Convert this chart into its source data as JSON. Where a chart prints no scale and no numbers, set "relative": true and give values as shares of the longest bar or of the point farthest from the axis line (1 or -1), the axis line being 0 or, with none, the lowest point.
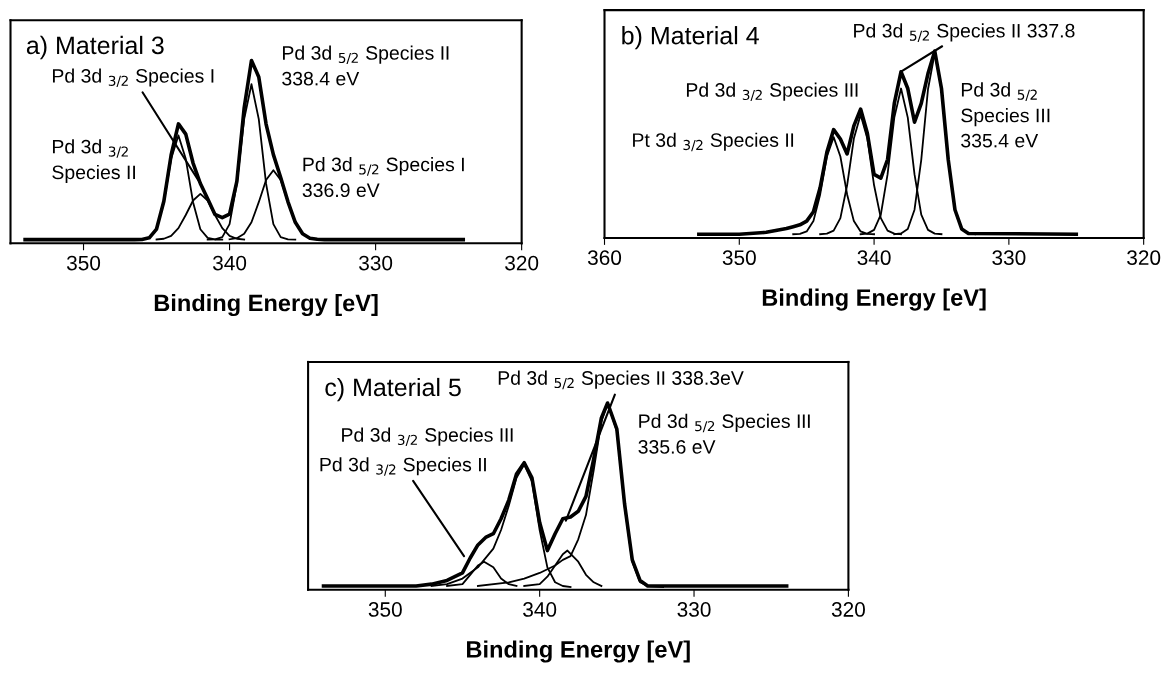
{
  "chart_data": [
    {
      "type": "line",
      "title": "a) Material 3",
      "xlabel": "Binding Energy [eV]",
      "relative": true,
      "xlim": [
        355,
        320
      ],
      "xticks": [
        350,
        340,
        330,
        320
      ],
      "grid": false,
      "legend": false,
      "marker": "none",
      "line_style": "solid",
      "tick_labels": "x",
      "annotations": [
        {
          "text": "Pd 3d $_{3/2}$ Species I",
          "x": 342,
          "y": 0.327
        },
        "Pd 3d $_{3/2}$\nSpecies II",
        "Pd 3d $_{5/2}$ Species II\n338.4 eV",
        "Pd 3d $_{5/2}$ Species I\n336.9 eV"
      ],
      "series": [
        {
          "color": "#000000",
          "x": [
            354,
            347,
            346.5,
            346,
            345.5,
            345,
            344.5,
            344,
            343.5,
            343,
            342.5,
            342,
            341.5,
            341,
            340.5,
            340,
            339.5,
            339,
            338.5,
            338,
            337.5,
            337,
            336.5,
            336,
            335.5,
            335,
            334.5,
            334,
            333.5,
            324
          ],
          "values": [
            0.02,
            0.02,
            0.02,
            0.021,
            0.03,
            0.078,
            0.23,
            0.483,
            0.653,
            0.597,
            0.439,
            0.327,
            0.244,
            0.158,
            0.14,
            0.16,
            0.339,
            0.74,
            1.0,
            0.91,
            0.652,
            0.485,
            0.36,
            0.227,
            0.115,
            0.052,
            0.028,
            0.022,
            0.02,
            0.02
          ]
        },
        {
          "color": "#000000",
          "x": [
            346.5,
            346,
            345.5,
            345,
            344.5,
            344,
            343.5,
            343,
            342.5,
            342,
            341.5,
            341,
            340.5
          ],
          "values": [
            0.02,
            0.021,
            0.03,
            0.077,
            0.225,
            0.462,
            0.59,
            0.462,
            0.225,
            0.077,
            0.03,
            0.021,
            0.02
          ]
        },
        {
          "color": "#000000",
          "x": [
            345,
            344.5,
            344,
            343.5,
            343,
            342.5,
            342,
            341.5,
            341,
            340.5,
            340,
            339.5,
            339
          ],
          "values": [
            0.021,
            0.025,
            0.041,
            0.083,
            0.155,
            0.234,
            0.27,
            0.234,
            0.155,
            0.083,
            0.041,
            0.025,
            0.021
          ]
        },
        {
          "color": "#000000",
          "x": [
            341.5,
            341,
            340.5,
            340,
            339.5,
            339,
            338.5,
            338,
            337.5,
            337,
            336.5,
            336,
            335.5
          ],
          "values": [
            0.02,
            0.022,
            0.034,
            0.105,
            0.326,
            0.679,
            0.87,
            0.679,
            0.326,
            0.105,
            0.034,
            0.022,
            0.02
          ]
        },
        {
          "color": "#000000",
          "x": [
            340,
            339.5,
            339,
            338.5,
            338,
            337.5,
            337,
            336.5,
            336,
            335.5,
            335,
            334.5,
            334
          ],
          "values": [
            0.022,
            0.028,
            0.052,
            0.115,
            0.225,
            0.346,
            0.4,
            0.346,
            0.225,
            0.115,
            0.052,
            0.028,
            0.022
          ]
        }
      ]
    },
    {
      "type": "line",
      "title": "b) Material 4",
      "xlabel": "Binding Energy [eV]",
      "relative": true,
      "xlim": [
        360,
        320
      ],
      "xticks": [
        360,
        350,
        340,
        330,
        320
      ],
      "grid": false,
      "legend": false,
      "marker": "none",
      "line_style": "solid",
      "tick_labels": "x",
      "annotations": [
        {
          "text": "Pd 3d $_{5/2}$ Species II 337.8",
          "x": 338,
          "y": 0.89
        },
        "Pd 3d $_{3/2}$ Species III",
        "Pt 3d $_{3/2}$ Species II",
        "Pd 3d $_{5/2}$\nSpecies III\n335.4 eV"
      ],
      "series": [
        {
          "color": "#000000",
          "x": [
            353,
            350,
            348,
            346.5,
            346,
            345.5,
            345,
            344.5,
            344,
            343.5,
            343,
            342.5,
            342,
            341.5,
            341,
            340.5,
            340,
            339.5,
            339,
            338.5,
            338,
            337.5,
            337,
            336.5,
            336,
            335.5,
            335,
            334.5,
            334,
            333.5,
            333,
            325
          ],
          "values": [
            0.02,
            0.02,
            0.03,
            0.05,
            0.06,
            0.07,
            0.09,
            0.14,
            0.27,
            0.46,
            0.58,
            0.53,
            0.45,
            0.6,
            0.69,
            0.56,
            0.34,
            0.32,
            0.42,
            0.72,
            0.89,
            0.8,
            0.62,
            0.72,
            0.88,
            1.0,
            0.8,
            0.42,
            0.151,
            0.048,
            0.024,
            0.02
          ]
        },
        {
          "color": "#000000",
          "x": [
            346,
            345.5,
            345,
            344.5,
            344,
            343.5,
            343,
            342.5,
            342,
            341.5,
            341,
            340.5,
            340
          ],
          "values": [
            0.02,
            0.022,
            0.035,
            0.09,
            0.233,
            0.436,
            0.54,
            0.436,
            0.233,
            0.09,
            0.035,
            0.022,
            0.02
          ]
        },
        {
          "color": "#000000",
          "x": [
            344,
            343.5,
            343,
            342.5,
            342,
            341.5,
            341,
            340.5,
            340,
            339.5,
            339,
            338.5,
            338
          ],
          "values": [
            0.02,
            0.023,
            0.039,
            0.106,
            0.282,
            0.532,
            0.66,
            0.532,
            0.282,
            0.106,
            0.039,
            0.023,
            0.02
          ]
        },
        {
          "color": "#000000",
          "x": [
            341,
            340.5,
            340,
            339.5,
            339,
            338.5,
            338,
            337.5,
            337,
            336.5,
            336,
            335.5,
            335
          ],
          "values": [
            0.02,
            0.023,
            0.043,
            0.125,
            0.34,
            0.644,
            0.8,
            0.644,
            0.34,
            0.125,
            0.043,
            0.023,
            0.02
          ]
        },
        {
          "color": "#000000",
          "x": [
            338.5,
            338,
            337.5,
            337,
            336.5,
            336,
            335.5,
            335,
            334.5,
            334,
            333.5,
            333,
            332.5
          ],
          "values": [
            0.02,
            0.024,
            0.048,
            0.151,
            0.418,
            0.796,
            0.99,
            0.796,
            0.418,
            0.151,
            0.048,
            0.024,
            0.02
          ]
        }
      ]
    },
    {
      "type": "line",
      "title": "c) Material 5",
      "xlabel": "Binding Energy [eV]",
      "relative": true,
      "xlim": [
        355,
        320
      ],
      "xticks": [
        350,
        340,
        330,
        320
      ],
      "grid": false,
      "legend": false,
      "marker": "none",
      "line_style": "solid",
      "tick_labels": "x",
      "annotations": [
        {
          "text": "Pd 3d $_{5/2}$ Species II 338.3eV",
          "x": 338.3,
          "y": 0.37
        },
        "Pd 3d $_{3/2}$ Species III",
        {
          "text": "Pd 3d $_{3/2}$ Species II",
          "x": 344.9,
          "y": 0.18
        },
        "Pd 3d $_{5/2}$ Species III\n335.6 eV"
      ],
      "series": [
        {
          "color": "#000000",
          "x": [
            354,
            348,
            347,
            346,
            345,
            344.5,
            344,
            343.5,
            343,
            342.5,
            342,
            341.5,
            341,
            340.5,
            340,
            339.5,
            339,
            338.5,
            338,
            337.5,
            337,
            336.5,
            336,
            335.6,
            335,
            334.5,
            334,
            333.5,
            333,
            324
          ],
          "values": [
            0.02,
            0.02,
            0.03,
            0.05,
            0.09,
            0.17,
            0.24,
            0.28,
            0.3,
            0.38,
            0.48,
            0.62,
            0.68,
            0.6,
            0.36,
            0.21,
            0.3,
            0.38,
            0.39,
            0.42,
            0.5,
            0.7,
            0.92,
            1.0,
            0.86,
            0.46,
            0.16,
            0.05,
            0.02,
            0.02
          ]
        },
        {
          "color": "#000000",
          "x": [
            346,
            345,
            344.5,
            344,
            343.6,
            343,
            342.5,
            342,
            341.5
          ],
          "values": [
            0.02,
            0.03,
            0.08,
            0.13,
            0.15,
            0.12,
            0.06,
            0.03,
            0.02
          ]
        },
        {
          "color": "#000000",
          "x": [
            347,
            346,
            345,
            344,
            343,
            342.5,
            342,
            341.5,
            341,
            340.5,
            340,
            339.5,
            339,
            338.5,
            338
          ],
          "values": [
            0.02,
            0.03,
            0.06,
            0.12,
            0.22,
            0.32,
            0.45,
            0.6,
            0.67,
            0.58,
            0.32,
            0.12,
            0.04,
            0.02,
            0.015
          ]
        },
        {
          "color": "#000000",
          "x": [
            341,
            340,
            339.5,
            339,
            338.5,
            338.2,
            337.5,
            337,
            336.5,
            336
          ],
          "values": [
            0.02,
            0.03,
            0.07,
            0.13,
            0.19,
            0.21,
            0.15,
            0.08,
            0.04,
            0.02
          ]
        },
        {
          "color": "#000000",
          "x": [
            344,
            342,
            341,
            340,
            339,
            338.5,
            338,
            337.5,
            337,
            336.5,
            336,
            335.6,
            335,
            334.5,
            334,
            333.5,
            333,
            332
          ],
          "values": [
            0.02,
            0.04,
            0.06,
            0.09,
            0.13,
            0.16,
            0.18,
            0.27,
            0.4,
            0.64,
            0.9,
            1.0,
            0.85,
            0.45,
            0.15,
            0.04,
            0.02,
            0.015
          ]
        }
      ]
    }
  ]
}
